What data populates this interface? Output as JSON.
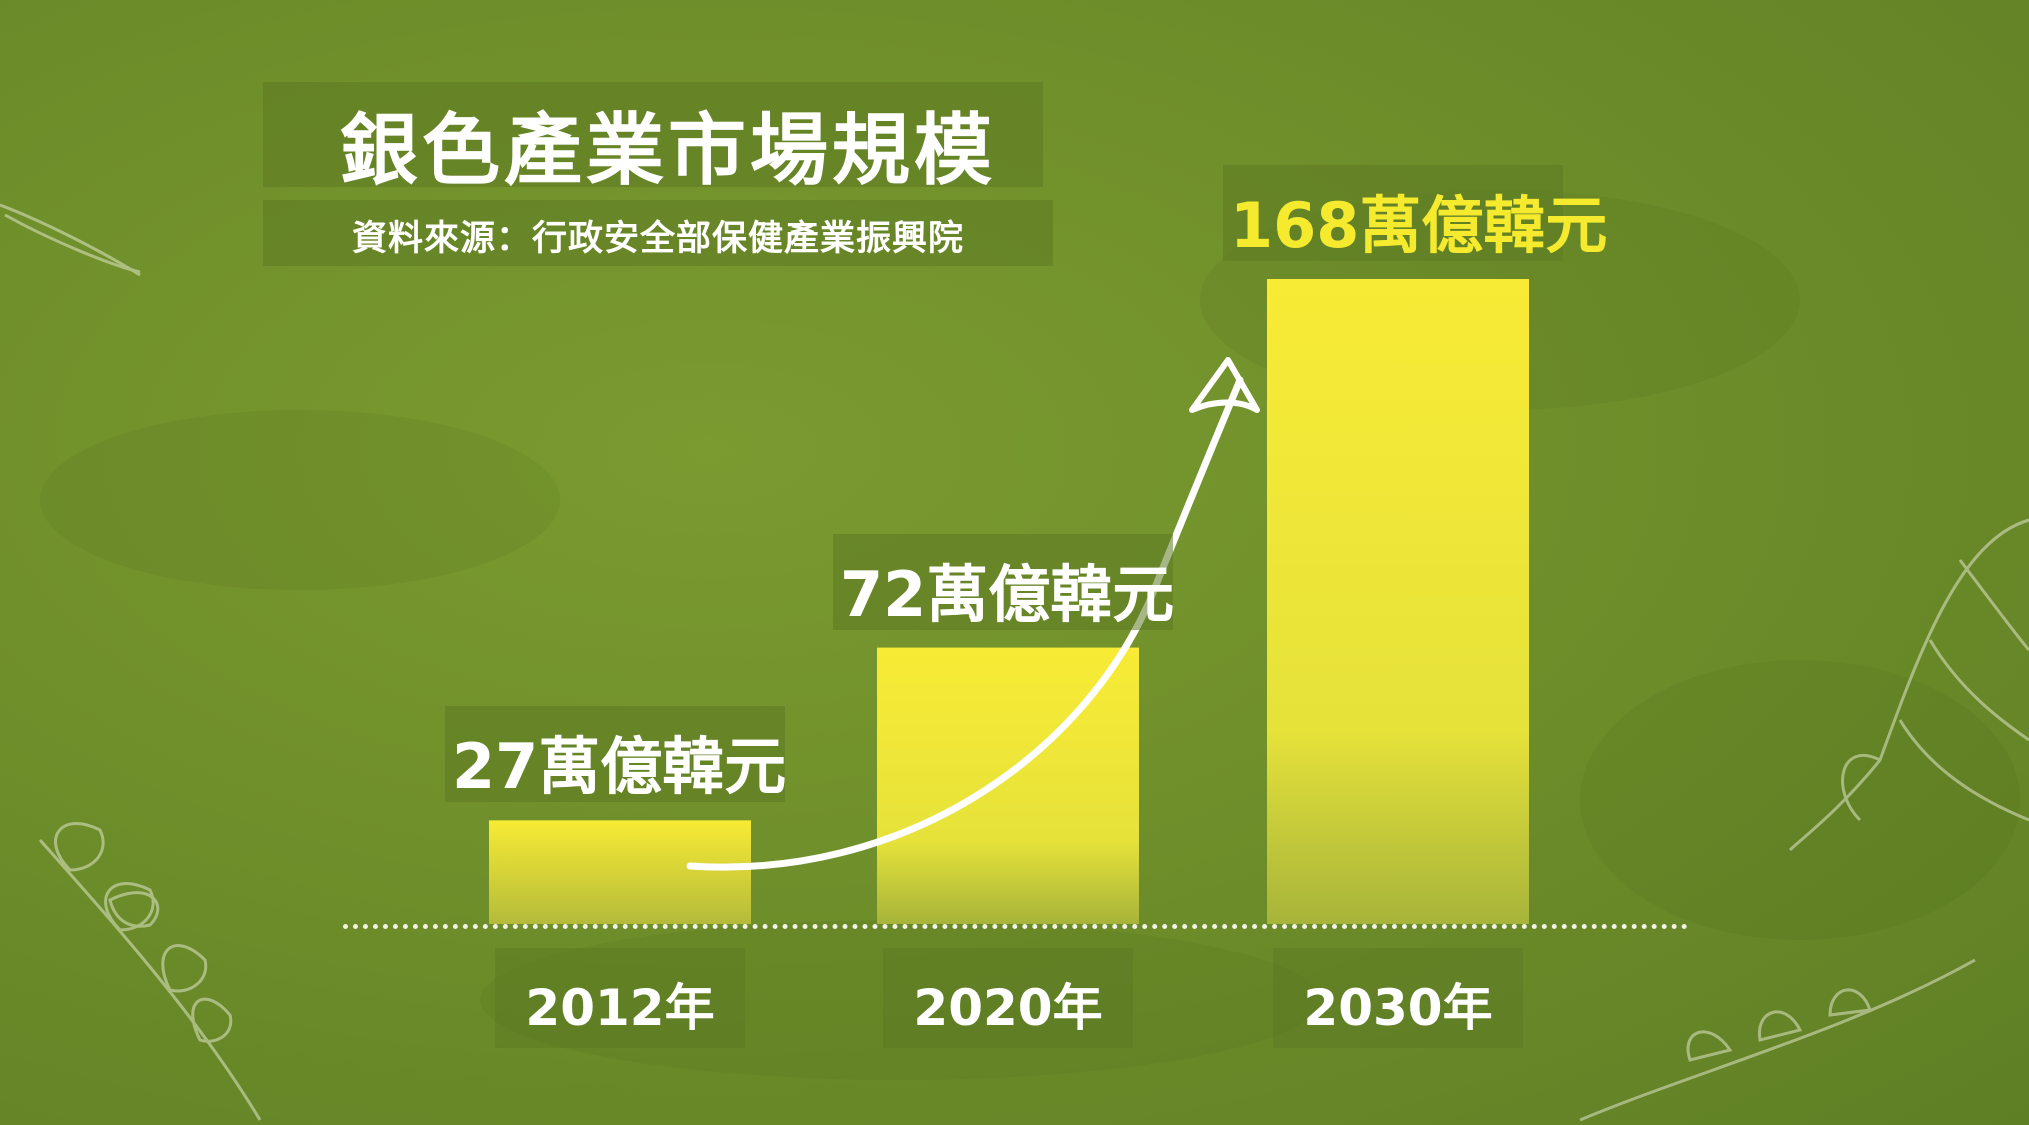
{
  "title": "銀色產業市場規模",
  "source": "資料來源：行政安全部保健產業振興院",
  "colors": {
    "bar_top": "#f8eb35",
    "bar_bottom": "#a7b43a",
    "highlight": "#f5ea2e",
    "text": "#ffffff"
  },
  "chart_data": {
    "type": "bar",
    "categories": [
      "2012年",
      "2020年",
      "2030年"
    ],
    "values": [
      27,
      72,
      168
    ],
    "value_labels": [
      "27萬億韓元",
      "72萬億韓元",
      "168萬億韓元"
    ],
    "unit": "萬億韓元",
    "ylim": [
      0,
      168
    ],
    "grid": false,
    "highlight_index": 2,
    "trend_arrow": true
  }
}
